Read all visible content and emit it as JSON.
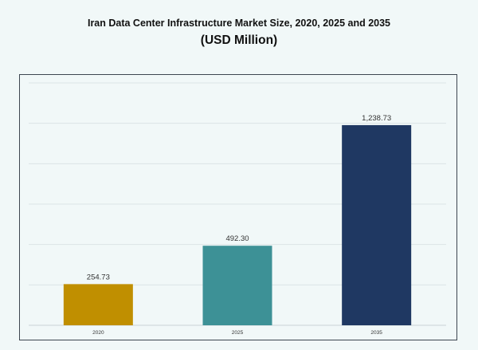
{
  "chart_data": {
    "type": "bar",
    "title": "Iran Data Center Infrastructure Market Size, 2020, 2025 and 2035",
    "subtitle": "(USD Million)",
    "categories": [
      "2020",
      "2025",
      "2035"
    ],
    "values": [
      254.73,
      492.3,
      1238.73
    ],
    "value_labels": [
      "254.73",
      "492.30",
      "1,238.73"
    ],
    "ylim": [
      0,
      1500
    ],
    "grid": true,
    "colors": [
      "#c08f00",
      "#3d9196",
      "#1f3862"
    ]
  }
}
